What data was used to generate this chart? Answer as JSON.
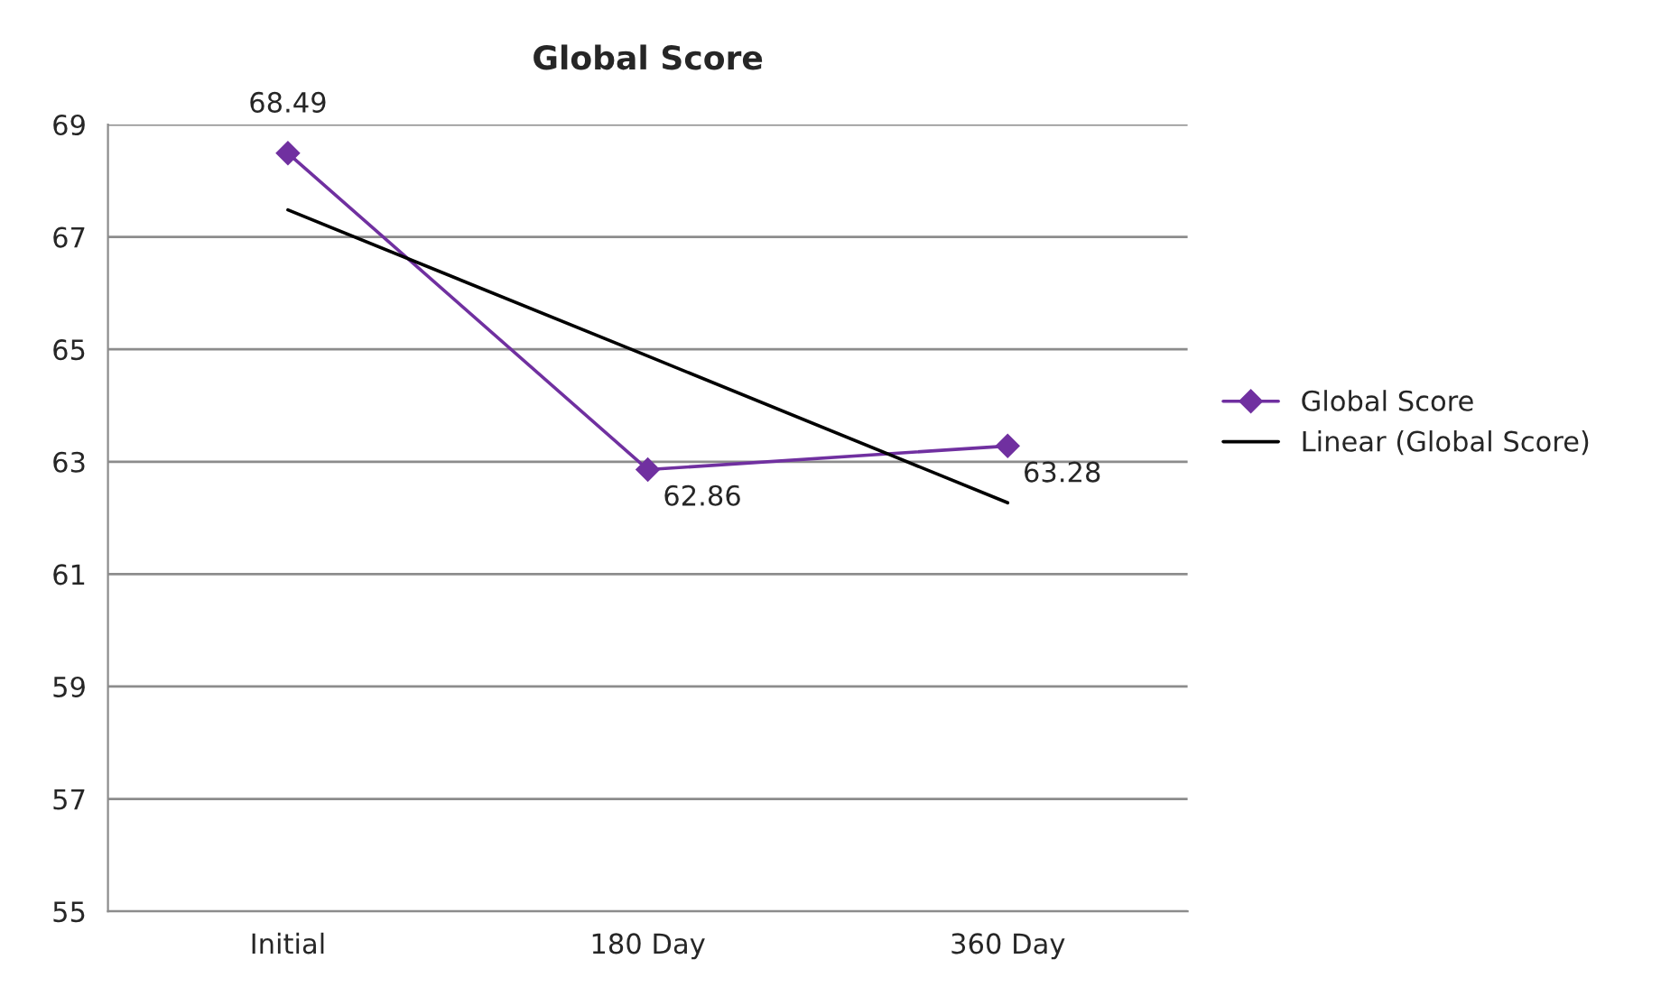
{
  "chart_data": {
    "type": "line",
    "title": "Global Score",
    "categories": [
      "Initial",
      "180 Day",
      "360 Day"
    ],
    "series": [
      {
        "name": "Global Score",
        "color": "#7030a0",
        "values": [
          68.49,
          62.86,
          63.28
        ],
        "value_labels": [
          "68.49",
          "62.86",
          "63.28"
        ],
        "marker": "diamond"
      },
      {
        "name": "Linear (Global Score)",
        "color": "#000000",
        "values": [
          67.48,
          64.88,
          62.27
        ],
        "marker": "none"
      }
    ],
    "ylim": [
      55,
      69
    ],
    "yticks": [
      55,
      57,
      59,
      61,
      63,
      65,
      67,
      69
    ],
    "grid": "y",
    "legend": "right",
    "line_style": "solid"
  }
}
